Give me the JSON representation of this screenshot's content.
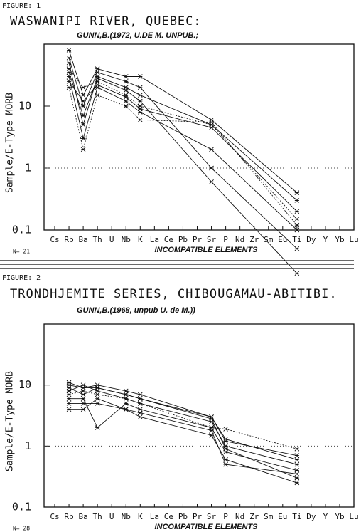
{
  "chart_data": [
    {
      "type": "line",
      "figure_label": "FIGURE: 1",
      "title": "WASWANIPI RIVER,  QUEBEC:",
      "subtitle": "GUNN,B.(1972, U.DE M. UNPUB.;",
      "y_label": "Sample/E-Type MORB",
      "x_label": "INCOMPATIBLE ELEMENTS",
      "n_label": "N= 21",
      "categories": [
        "Cs",
        "Rb",
        "Ba",
        "Th",
        "U",
        "Nb",
        "K",
        "La",
        "Ce",
        "Pb",
        "Pr",
        "Sr",
        "P",
        "Nd",
        "Zr",
        "Sm",
        "Eu",
        "Ti",
        "Dy",
        "Y",
        "Yb",
        "Lu"
      ],
      "log_scale": true,
      "ylim": [
        0.1,
        100
      ],
      "yticks": [
        0.1,
        1,
        10
      ],
      "reference_line": 1,
      "series": [
        {
          "color": "#111",
          "style": "solid",
          "x": [
            "Rb",
            "Ba",
            "Th",
            "Nb",
            "K",
            "Sr",
            "Ti"
          ],
          "values": [
            80,
            15,
            40,
            30,
            30,
            6,
            0.4
          ]
        },
        {
          "color": "#111",
          "style": "solid",
          "x": [
            "Rb",
            "Ba",
            "Th",
            "Nb",
            "K",
            "Sr",
            "Ti"
          ],
          "values": [
            50,
            5,
            30,
            20,
            15,
            5,
            0.3
          ]
        },
        {
          "color": "#111",
          "style": "dotted",
          "x": [
            "Rb",
            "Ba",
            "Th",
            "Nb",
            "K",
            "Sr",
            "Ti"
          ],
          "values": [
            40,
            20,
            25,
            15,
            10,
            5,
            0.15
          ]
        },
        {
          "color": "#111",
          "style": "solid",
          "x": [
            "Rb",
            "Ba",
            "Th",
            "Nb",
            "K",
            "Sr",
            "Ti"
          ],
          "values": [
            30,
            3,
            20,
            12,
            8,
            2,
            0.1
          ]
        },
        {
          "color": "#111",
          "style": "solid",
          "x": [
            "Rb",
            "Ba",
            "Th",
            "Nb",
            "K",
            "Sr",
            "Ti"
          ],
          "values": [
            60,
            10,
            35,
            25,
            20,
            1,
            0.05
          ]
        },
        {
          "color": "#111",
          "style": "dotted",
          "x": [
            "Rb",
            "Ba",
            "Th",
            "Nb",
            "K",
            "Sr",
            "Ti"
          ],
          "values": [
            20,
            2,
            15,
            10,
            6,
            5.5,
            0.12
          ]
        },
        {
          "color": "#111",
          "style": "solid",
          "x": [
            "Rb",
            "Ba",
            "Th",
            "Nb",
            "K",
            "Sr",
            "Ti"
          ],
          "values": [
            35,
            7,
            28,
            18,
            12,
            0.6,
            0.02
          ]
        },
        {
          "color": "#111",
          "style": "solid",
          "x": [
            "Rb",
            "Ba",
            "Th",
            "Nb",
            "K",
            "Sr",
            "Ti"
          ],
          "values": [
            25,
            12,
            22,
            14,
            9,
            4.5,
            0.2
          ]
        }
      ]
    },
    {
      "type": "line",
      "figure_label": "FIGURE: 2",
      "title": "TRONDHJEMITE SERIES,  CHIBOUGAMAU-ABITIBI.",
      "subtitle": "GUNN,B.(1968, unpub U. de M.))",
      "y_label": "Sample/E-Type MORB",
      "x_label": "INCOMPATIBLE ELEMENTS",
      "n_label": "N= 28",
      "categories": [
        "Cs",
        "Rb",
        "Ba",
        "Th",
        "U",
        "Nb",
        "K",
        "La",
        "Ce",
        "Pb",
        "Pr",
        "Sr",
        "P",
        "Nd",
        "Zr",
        "Sm",
        "Eu",
        "Ti",
        "Dy",
        "Y",
        "Yb",
        "Lu"
      ],
      "log_scale": true,
      "ylim": [
        0.1,
        100
      ],
      "yticks": [
        0.1,
        1,
        10
      ],
      "reference_line": 1,
      "series": [
        {
          "color": "#111",
          "style": "solid",
          "x": [
            "Rb",
            "Ba",
            "Th",
            "Nb",
            "K",
            "Sr",
            "P",
            "Ti"
          ],
          "values": [
            10,
            9,
            10,
            8,
            7,
            3,
            1.2,
            0.7
          ]
        },
        {
          "color": "#111",
          "style": "solid",
          "x": [
            "Rb",
            "Ba",
            "Th",
            "Nb",
            "K",
            "Sr",
            "P",
            "Ti"
          ],
          "values": [
            8,
            10,
            8,
            6,
            5,
            2.5,
            1,
            0.5
          ]
        },
        {
          "color": "#111",
          "style": "solid",
          "x": [
            "Rb",
            "Ba",
            "Th",
            "Nb",
            "K",
            "Sr",
            "P",
            "Ti"
          ],
          "values": [
            6,
            6,
            2,
            5,
            4,
            2,
            0.8,
            0.4
          ]
        },
        {
          "color": "#111",
          "style": "solid",
          "x": [
            "Rb",
            "Ba",
            "Th",
            "Nb",
            "K",
            "Sr",
            "P",
            "Ti"
          ],
          "values": [
            9,
            7,
            9,
            7,
            6,
            2.8,
            0.9,
            0.3
          ]
        },
        {
          "color": "#111",
          "style": "solid",
          "x": [
            "Rb",
            "Ba",
            "Th",
            "Nb",
            "K",
            "Sr",
            "P",
            "Ti"
          ],
          "values": [
            4,
            4,
            6,
            4,
            3,
            1.5,
            0.6,
            0.25
          ]
        },
        {
          "color": "#111",
          "style": "dotted",
          "x": [
            "Rb",
            "Ba",
            "Th",
            "Nb",
            "K",
            "Sr",
            "P",
            "Ti"
          ],
          "values": [
            7,
            8,
            7,
            6,
            5,
            2,
            1.9,
            0.9
          ]
        },
        {
          "color": "#111",
          "style": "solid",
          "x": [
            "Rb",
            "Ba",
            "Th",
            "Nb",
            "K",
            "Sr",
            "P",
            "Ti"
          ],
          "values": [
            5,
            5,
            5,
            4,
            3.5,
            1.8,
            0.5,
            0.35
          ]
        },
        {
          "color": "#111",
          "style": "solid",
          "x": [
            "Rb",
            "Ba",
            "Th",
            "Nb",
            "K",
            "Sr",
            "P",
            "Ti"
          ],
          "values": [
            11,
            9,
            9,
            7,
            6,
            3,
            1.3,
            0.6
          ]
        }
      ]
    }
  ]
}
